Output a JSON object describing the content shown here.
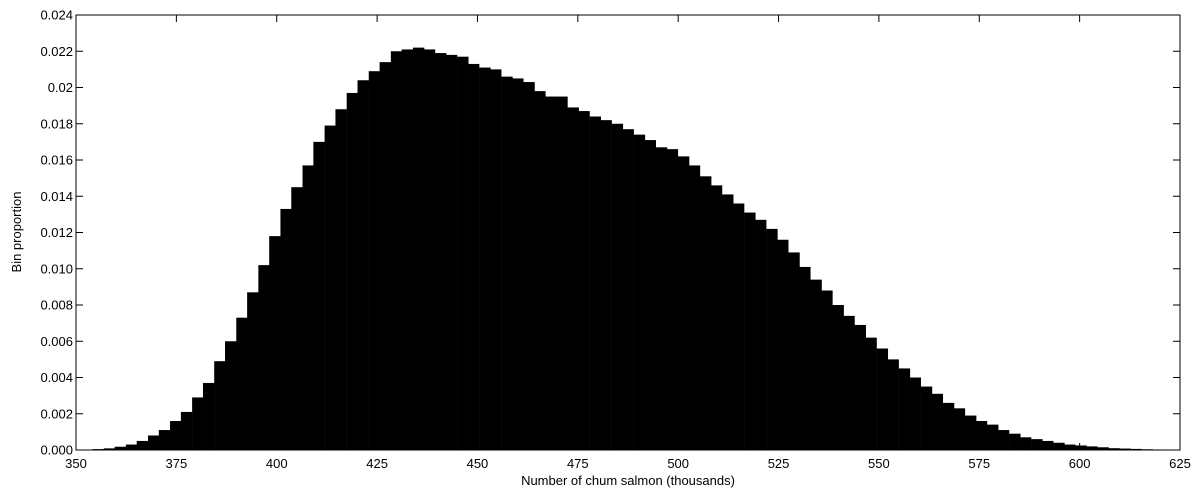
{
  "chart_data": {
    "type": "bar",
    "title": "",
    "xlabel": "Number of chum salmon (thousands)",
    "ylabel": "Bin proportion",
    "xlim": [
      350,
      625
    ],
    "ylim": [
      0,
      0.024
    ],
    "grid": false,
    "legend": "none",
    "bar_color": "#000000",
    "bin_width": 2.75,
    "xticks": [
      "350",
      "375",
      "400",
      "425",
      "450",
      "475",
      "500",
      "525",
      "550",
      "575",
      "600",
      "625"
    ],
    "yticks": [
      "0.000",
      "0.002",
      "0.004",
      "0.006",
      "0.008",
      "0.010",
      "0.012",
      "0.014",
      "0.016",
      "0.018",
      "0.02",
      "0.022",
      "0.024"
    ],
    "x": [
      355.5,
      358.3,
      361.0,
      363.8,
      366.5,
      369.3,
      372.0,
      374.8,
      377.5,
      380.3,
      383.0,
      385.8,
      388.5,
      391.3,
      394.0,
      396.8,
      399.5,
      402.3,
      405.0,
      407.8,
      410.5,
      413.3,
      416.0,
      418.8,
      421.5,
      424.3,
      427.0,
      429.8,
      432.5,
      435.3,
      438.0,
      440.8,
      443.5,
      446.3,
      449.0,
      451.8,
      454.5,
      457.3,
      460.0,
      462.8,
      465.5,
      468.3,
      471.0,
      473.8,
      476.5,
      479.3,
      482.0,
      484.8,
      487.5,
      490.3,
      493.0,
      495.8,
      498.5,
      501.3,
      504.0,
      506.8,
      509.5,
      512.3,
      515.0,
      517.8,
      520.5,
      523.3,
      526.0,
      528.8,
      531.5,
      534.3,
      537.0,
      539.8,
      542.5,
      545.3,
      548.0,
      550.8,
      553.5,
      556.3,
      559.0,
      561.8,
      564.5,
      567.3,
      570.0,
      572.8,
      575.5,
      578.3,
      581.0,
      583.8,
      586.5,
      589.3,
      592.0,
      594.8,
      597.5,
      600.3,
      603.0,
      605.8,
      608.5,
      611.3,
      614.0,
      616.8,
      619.5,
      622.3
    ],
    "values": [
      5e-05,
      9e-05,
      0.00018,
      0.0003,
      0.0005,
      0.0008,
      0.0011,
      0.0016,
      0.0021,
      0.0029,
      0.0037,
      0.0049,
      0.006,
      0.0073,
      0.0087,
      0.0102,
      0.0118,
      0.0133,
      0.0145,
      0.0157,
      0.017,
      0.0179,
      0.0188,
      0.0197,
      0.0204,
      0.0209,
      0.0214,
      0.022,
      0.0221,
      0.0222,
      0.0221,
      0.0219,
      0.0218,
      0.0217,
      0.0213,
      0.0211,
      0.021,
      0.0206,
      0.0205,
      0.0203,
      0.0198,
      0.0195,
      0.0195,
      0.0189,
      0.0187,
      0.0184,
      0.0182,
      0.018,
      0.0177,
      0.0174,
      0.0171,
      0.0167,
      0.0166,
      0.0162,
      0.0157,
      0.0151,
      0.0146,
      0.0141,
      0.0136,
      0.0131,
      0.0127,
      0.0122,
      0.0116,
      0.0109,
      0.0101,
      0.0094,
      0.0088,
      0.008,
      0.0074,
      0.0069,
      0.0062,
      0.0056,
      0.005,
      0.0045,
      0.004,
      0.0035,
      0.0031,
      0.0026,
      0.0023,
      0.0019,
      0.0016,
      0.0014,
      0.0011,
      0.0009,
      0.0007,
      0.0006,
      0.0005,
      0.0004,
      0.0003,
      0.00025,
      0.0002,
      0.00015,
      0.0001,
      8e-05,
      6e-05,
      4e-05,
      3e-05,
      2e-05
    ]
  }
}
